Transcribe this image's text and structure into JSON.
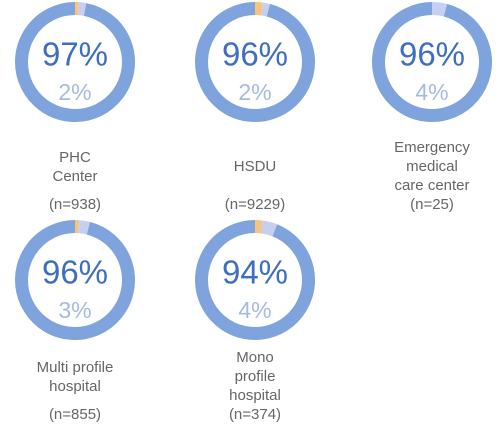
{
  "chart_data": [
    {
      "type": "donut",
      "title": "PHC Center",
      "subtitle": "(n=938)",
      "values": [
        97,
        2,
        1
      ],
      "value_labels": [
        "97%",
        "2%",
        null
      ],
      "colors": [
        "#7fa3dc",
        "#c6cff0",
        "#f6c47c"
      ]
    },
    {
      "type": "donut",
      "title": "HSDU",
      "subtitle": "(n=9229)",
      "values": [
        96,
        2,
        2
      ],
      "value_labels": [
        "96%",
        "2%",
        null
      ],
      "colors": [
        "#7fa3dc",
        "#c6cff0",
        "#f6c47c"
      ]
    },
    {
      "type": "donut",
      "title": "Emergency medical care center",
      "subtitle": "(n=25)",
      "values": [
        96,
        4
      ],
      "value_labels": [
        "96%",
        "4%"
      ],
      "colors": [
        "#7fa3dc",
        "#c6cff0"
      ]
    },
    {
      "type": "donut",
      "title": "Multi profile hospital",
      "subtitle": "(n=855)",
      "values": [
        96,
        3,
        1
      ],
      "value_labels": [
        "96%",
        "3%",
        null
      ],
      "colors": [
        "#7fa3dc",
        "#c6cff0",
        "#f6c47c"
      ]
    },
    {
      "type": "donut",
      "title": "Mono profile hospital",
      "subtitle": "(n=374)",
      "values": [
        94,
        4,
        2
      ],
      "value_labels": [
        "94%",
        "4%",
        null
      ],
      "colors": [
        "#7fa3dc",
        "#c6cff0",
        "#f6c47c"
      ]
    }
  ]
}
